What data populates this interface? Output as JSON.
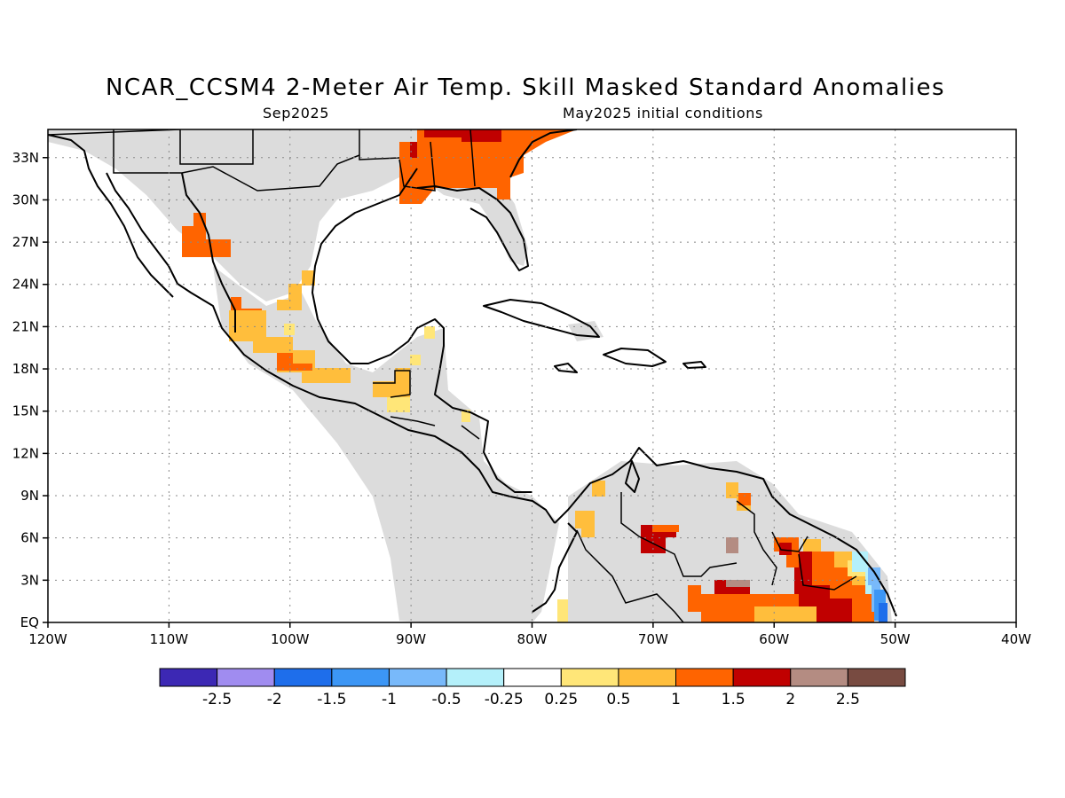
{
  "title": "NCAR_CCSM4 2-Meter Air Temp. Skill Masked Standard Anomalies",
  "subtitle_left": "Sep2025",
  "subtitle_right": "May2025 initial conditions",
  "map": {
    "lon_range": [
      -120,
      -40
    ],
    "lat_range": [
      0,
      35
    ],
    "lon_ticks": [
      {
        "value": -120,
        "label": "120W"
      },
      {
        "value": -110,
        "label": "110W"
      },
      {
        "value": -100,
        "label": "100W"
      },
      {
        "value": -90,
        "label": "90W"
      },
      {
        "value": -80,
        "label": "80W"
      },
      {
        "value": -70,
        "label": "70W"
      },
      {
        "value": -60,
        "label": "60W"
      },
      {
        "value": -50,
        "label": "50W"
      },
      {
        "value": -40,
        "label": "40W"
      }
    ],
    "lat_ticks": [
      {
        "value": 0,
        "label": "EQ"
      },
      {
        "value": 3,
        "label": "3N"
      },
      {
        "value": 6,
        "label": "6N"
      },
      {
        "value": 9,
        "label": "9N"
      },
      {
        "value": 12,
        "label": "12N"
      },
      {
        "value": 15,
        "label": "15N"
      },
      {
        "value": 18,
        "label": "18N"
      },
      {
        "value": 21,
        "label": "21N"
      },
      {
        "value": 24,
        "label": "24N"
      },
      {
        "value": 27,
        "label": "27N"
      },
      {
        "value": 30,
        "label": "30N"
      },
      {
        "value": 33,
        "label": "33N"
      }
    ],
    "grid": "dotted",
    "no_skill_color": "#dcdcdc",
    "anomaly_regions": [
      {
        "name": "southeast-us",
        "value": 1.2
      },
      {
        "name": "gulf-coast-north",
        "value": 1.8
      },
      {
        "name": "northwest-mexico",
        "value": 1.2
      },
      {
        "name": "central-mexico",
        "value": 0.7
      },
      {
        "name": "yucatan-guatemala",
        "value": 0.6
      },
      {
        "name": "venezuela-interior",
        "value": 1.8
      },
      {
        "name": "guiana-shield",
        "value": 1.6
      },
      {
        "name": "northern-brazil",
        "value": 1.5
      },
      {
        "name": "amapa-coast",
        "value": -0.6
      }
    ]
  },
  "colorbar": {
    "colors": [
      "#3c28b4",
      "#a08cf0",
      "#1e6eeb",
      "#3c96f5",
      "#78b9fa",
      "#b4f0fa",
      "#ffffff",
      "#ffe678",
      "#ffbe3c",
      "#ff6400",
      "#c00000",
      "#b48c82",
      "#784b41"
    ],
    "labels": [
      "-2.5",
      "-2",
      "-1.5",
      "-1",
      "-0.5",
      "-0.25",
      "0.25",
      "0.5",
      "1",
      "1.5",
      "2",
      "2.5"
    ]
  }
}
